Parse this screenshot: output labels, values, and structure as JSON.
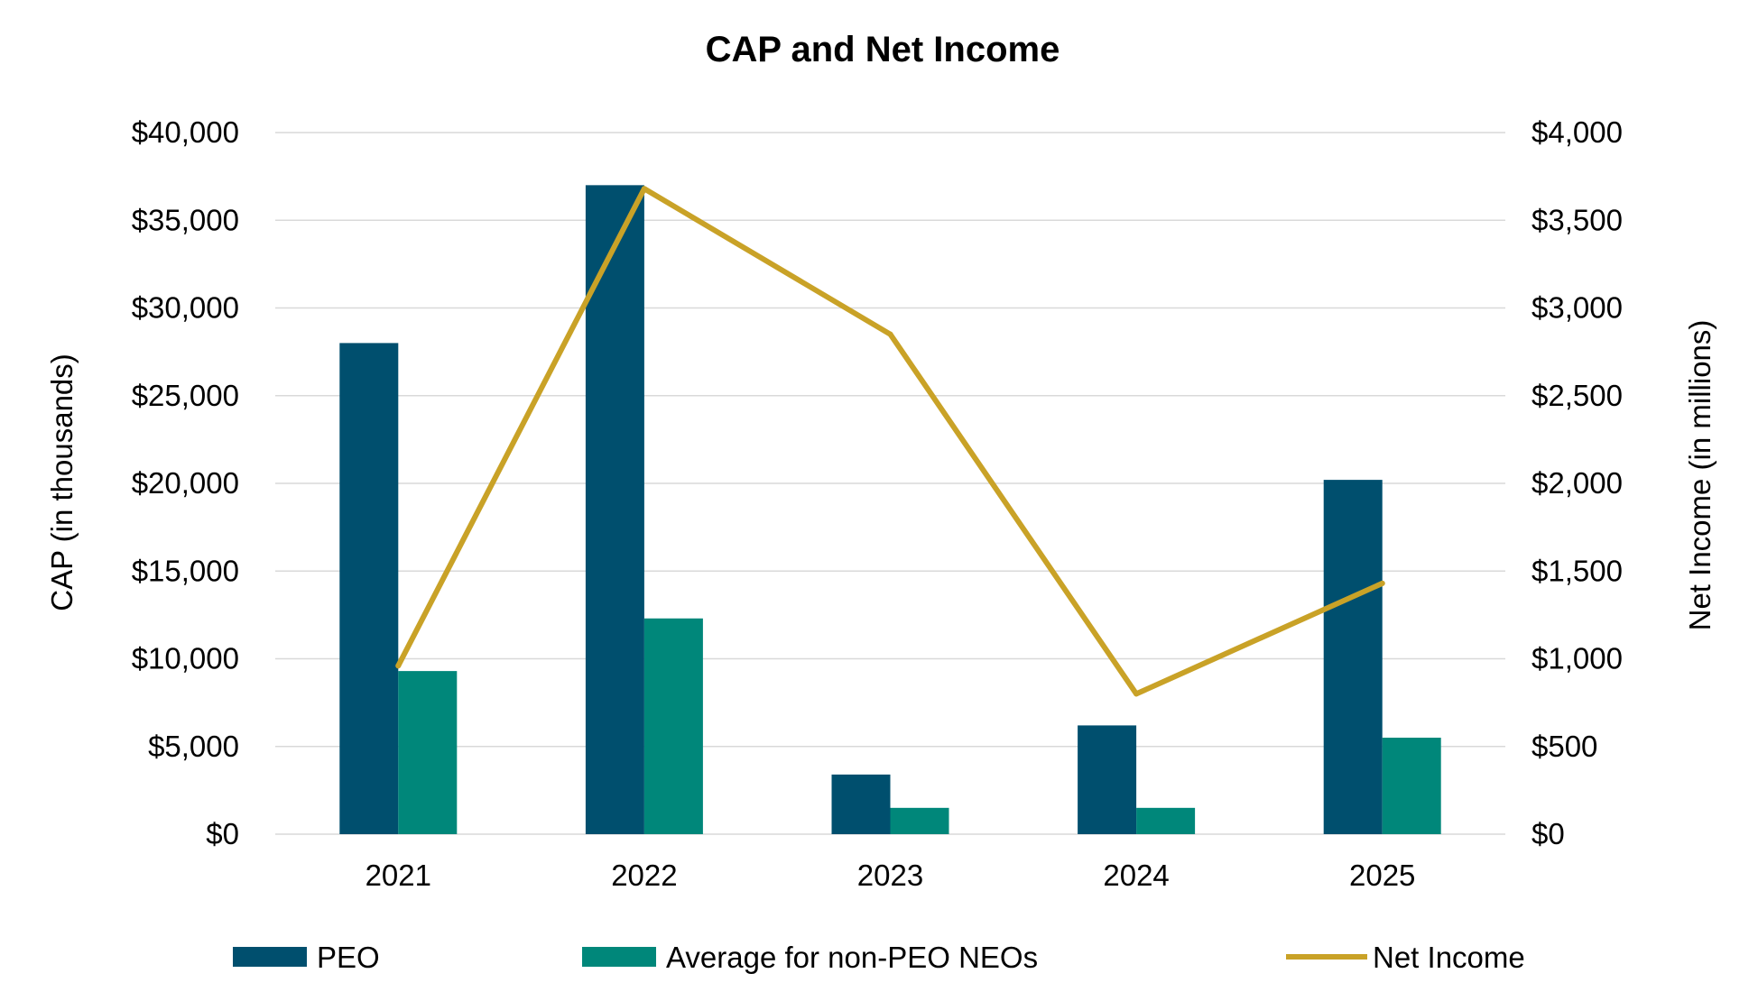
{
  "chart_data": {
    "type": "bar",
    "title": "CAP and Net Income",
    "categories": [
      "2021",
      "2022",
      "2023",
      "2024",
      "2025"
    ],
    "series": [
      {
        "name": "PEO",
        "type": "bar",
        "axis": "left",
        "color": "#004f6e",
        "values": [
          28000,
          37000,
          3400,
          6200,
          20200
        ]
      },
      {
        "name": "Average for non-PEO NEOs",
        "type": "bar",
        "axis": "left",
        "color": "#00877a",
        "values": [
          9300,
          12300,
          1500,
          1500,
          5500
        ]
      },
      {
        "name": "Net Income",
        "type": "line",
        "axis": "right",
        "color": "#c9a227",
        "values": [
          960,
          3680,
          2850,
          800,
          1430
        ]
      }
    ],
    "ylabel": "CAP (in thousands)",
    "y2label": "Net Income (in millions)",
    "ylim": [
      0,
      40000
    ],
    "y2lim": [
      0,
      4000
    ],
    "yticks": [
      "$0",
      "$5,000",
      "$10,000",
      "$15,000",
      "$20,000",
      "$25,000",
      "$30,000",
      "$35,000",
      "$40,000"
    ],
    "y2ticks": [
      "$0",
      "$500",
      "$1,000",
      "$1,500",
      "$2,000",
      "$2,500",
      "$3,000",
      "$3,500",
      "$4,000"
    ],
    "grid": true,
    "legend_position": "bottom"
  }
}
